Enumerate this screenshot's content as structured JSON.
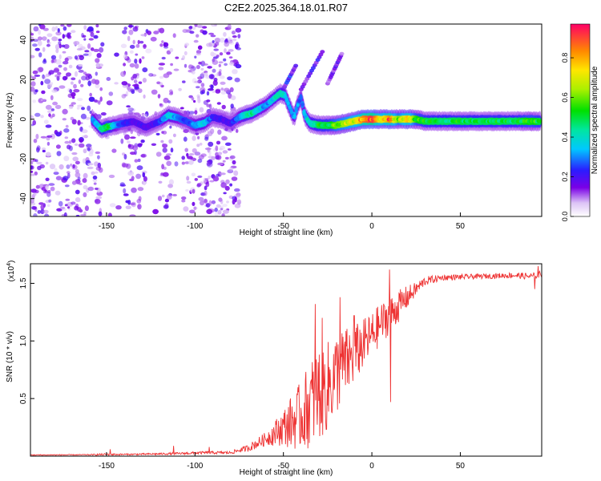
{
  "title": "C2E2.2025.364.18.01.R07",
  "chart_data": [
    {
      "type": "heatmap",
      "name": "spectrogram",
      "xlabel": "Height of straight line (km)",
      "ylabel": "Frequency (Hz)",
      "xlim": [
        -193,
        96
      ],
      "ylim": [
        -49,
        48
      ],
      "xticks": [
        -150,
        -100,
        -50,
        0,
        50
      ],
      "yticks": [
        40,
        20,
        0,
        -20,
        -40
      ],
      "grid": false,
      "colorbar": {
        "label": "Normalized spectral amplitude",
        "range": [
          0,
          0.97
        ],
        "ticks": [
          "0.0",
          "0.2",
          "0.4",
          "0.6",
          "0.8"
        ],
        "tick_values": [
          0,
          0.2,
          0.4,
          0.6,
          0.8
        ]
      },
      "noise_region": {
        "x_range": [
          -193,
          -75
        ],
        "y_range": [
          -49,
          48
        ],
        "typical_amplitude": 0.12
      },
      "gaps": [
        [
          -153,
          -141
        ],
        [
          -128,
          -121
        ],
        [
          -113,
          -107
        ]
      ],
      "ridge": [
        {
          "x": -158,
          "y": 0,
          "a": 0.3
        },
        {
          "x": -153,
          "y": -5,
          "a": 0.42
        },
        {
          "x": -150,
          "y": -4,
          "a": 0.55
        },
        {
          "x": -145,
          "y": -3,
          "a": 0.3
        },
        {
          "x": -135,
          "y": -1,
          "a": 0.18
        },
        {
          "x": -128,
          "y": -4,
          "a": 0.2
        },
        {
          "x": -125,
          "y": -3,
          "a": 0.18
        },
        {
          "x": -120,
          "y": -1,
          "a": 0.25
        },
        {
          "x": -115,
          "y": 2,
          "a": 0.38
        },
        {
          "x": -110,
          "y": 1,
          "a": 0.3
        },
        {
          "x": -105,
          "y": -1,
          "a": 0.25
        },
        {
          "x": -100,
          "y": -3,
          "a": 0.3
        },
        {
          "x": -95,
          "y": -2,
          "a": 0.38
        },
        {
          "x": -90,
          "y": 1,
          "a": 0.22
        },
        {
          "x": -85,
          "y": 0,
          "a": 0.2
        },
        {
          "x": -80,
          "y": -2,
          "a": 0.2
        },
        {
          "x": -75,
          "y": 1,
          "a": 0.3
        },
        {
          "x": -72,
          "y": 2,
          "a": 0.42
        },
        {
          "x": -68,
          "y": 3,
          "a": 0.45
        },
        {
          "x": -64,
          "y": 5,
          "a": 0.35
        },
        {
          "x": -60,
          "y": 7,
          "a": 0.3
        },
        {
          "x": -56,
          "y": 10,
          "a": 0.38
        },
        {
          "x": -52,
          "y": 13,
          "a": 0.45
        },
        {
          "x": -49,
          "y": 12,
          "a": 0.35
        },
        {
          "x": -46,
          "y": 5,
          "a": 0.3
        },
        {
          "x": -44,
          "y": 1,
          "a": 0.35
        },
        {
          "x": -42,
          "y": 7,
          "a": 0.3
        },
        {
          "x": -40,
          "y": 11,
          "a": 0.28
        },
        {
          "x": -38,
          "y": 2,
          "a": 0.35
        },
        {
          "x": -35,
          "y": -2,
          "a": 0.4
        },
        {
          "x": -30,
          "y": -3,
          "a": 0.5
        },
        {
          "x": -25,
          "y": -3,
          "a": 0.5
        },
        {
          "x": -20,
          "y": -3,
          "a": 0.6
        },
        {
          "x": -15,
          "y": -2,
          "a": 0.65
        },
        {
          "x": -10,
          "y": -1,
          "a": 0.7
        },
        {
          "x": -5,
          "y": 0,
          "a": 0.85
        },
        {
          "x": 0,
          "y": 0,
          "a": 0.95
        },
        {
          "x": 5,
          "y": 0,
          "a": 0.7
        },
        {
          "x": 10,
          "y": 0,
          "a": 0.85
        },
        {
          "x": 15,
          "y": 0,
          "a": 0.6
        },
        {
          "x": 20,
          "y": 0,
          "a": 0.8
        },
        {
          "x": 25,
          "y": 0,
          "a": 0.55
        },
        {
          "x": 30,
          "y": -1,
          "a": 0.5
        },
        {
          "x": 40,
          "y": -1,
          "a": 0.48
        },
        {
          "x": 50,
          "y": -1,
          "a": 0.5
        },
        {
          "x": 60,
          "y": -1,
          "a": 0.48
        },
        {
          "x": 70,
          "y": -1,
          "a": 0.5
        },
        {
          "x": 80,
          "y": -1,
          "a": 0.48
        },
        {
          "x": 90,
          "y": -1,
          "a": 0.55
        },
        {
          "x": 95,
          "y": -1,
          "a": 0.5
        }
      ],
      "streaks": [
        {
          "x0": -52,
          "y0": 12,
          "x1": -43,
          "y1": 27,
          "a": 0.2
        },
        {
          "x0": -40,
          "y0": 15,
          "x1": -28,
          "y1": 34,
          "a": 0.18
        },
        {
          "x0": -25,
          "y0": 18,
          "x1": -17,
          "y1": 33,
          "a": 0.15
        }
      ]
    },
    {
      "type": "line",
      "name": "snr",
      "xlabel": "Height of straight line (km)",
      "ylabel": "SNR (10 * v/v)",
      "y_multiplier": "(x10^4)",
      "multiplier_base": "(x10",
      "multiplier_exp": "4",
      "multiplier_close": ")",
      "xlim": [
        -193,
        96
      ],
      "ylim": [
        0,
        1.67
      ],
      "xticks": [
        -150,
        -100,
        -50,
        0,
        50
      ],
      "yticks": [
        0.5,
        1.0,
        1.5
      ],
      "ytick_labels": [
        "0.5",
        "1.0",
        "1.5"
      ],
      "grid": false,
      "color": "#ee3333",
      "series": [
        {
          "name": "SNR",
          "envelope": [
            {
              "x": -193,
              "base": 0.01,
              "amp": 0.004
            },
            {
              "x": -160,
              "base": 0.012,
              "amp": 0.004
            },
            {
              "x": -150,
              "base": 0.015,
              "amp": 0.01
            },
            {
              "x": -140,
              "base": 0.015,
              "amp": 0.006
            },
            {
              "x": -125,
              "base": 0.018,
              "amp": 0.008
            },
            {
              "x": -110,
              "base": 0.022,
              "amp": 0.01
            },
            {
              "x": -95,
              "base": 0.03,
              "amp": 0.012
            },
            {
              "x": -80,
              "base": 0.03,
              "amp": 0.012
            },
            {
              "x": -70,
              "base": 0.07,
              "amp": 0.03
            },
            {
              "x": -60,
              "base": 0.15,
              "amp": 0.06
            },
            {
              "x": -50,
              "base": 0.25,
              "amp": 0.16
            },
            {
              "x": -45,
              "base": 0.3,
              "amp": 0.24
            },
            {
              "x": -40,
              "base": 0.35,
              "amp": 0.3
            },
            {
              "x": -35,
              "base": 0.45,
              "amp": 0.38
            },
            {
              "x": -30,
              "base": 0.55,
              "amp": 0.42
            },
            {
              "x": -25,
              "base": 0.6,
              "amp": 0.4
            },
            {
              "x": -20,
              "base": 0.72,
              "amp": 0.36
            },
            {
              "x": -15,
              "base": 0.8,
              "amp": 0.32
            },
            {
              "x": -10,
              "base": 0.88,
              "amp": 0.26
            },
            {
              "x": -5,
              "base": 0.97,
              "amp": 0.22
            },
            {
              "x": 0,
              "base": 1.05,
              "amp": 0.2
            },
            {
              "x": 5,
              "base": 1.15,
              "amp": 0.18
            },
            {
              "x": 10,
              "base": 1.22,
              "amp": 0.16
            },
            {
              "x": 15,
              "base": 1.3,
              "amp": 0.14
            },
            {
              "x": 20,
              "base": 1.38,
              "amp": 0.1
            },
            {
              "x": 25,
              "base": 1.45,
              "amp": 0.06
            },
            {
              "x": 30,
              "base": 1.52,
              "amp": 0.04
            },
            {
              "x": 40,
              "base": 1.55,
              "amp": 0.025
            },
            {
              "x": 60,
              "base": 1.56,
              "amp": 0.022
            },
            {
              "x": 80,
              "base": 1.57,
              "amp": 0.025
            },
            {
              "x": 90,
              "base": 1.56,
              "amp": 0.03
            },
            {
              "x": 96,
              "base": 1.58,
              "amp": 0.03
            }
          ],
          "spikes": [
            {
              "x": -148,
              "y": 0.06
            },
            {
              "x": -112,
              "y": 0.09
            },
            {
              "x": -92,
              "y": 0.08
            },
            {
              "x": -32,
              "y": 1.32
            },
            {
              "x": -28,
              "y": 1.2
            },
            {
              "x": -18,
              "y": 1.38
            },
            {
              "x": -10,
              "y": 1.22
            },
            {
              "x": 10,
              "y": 1.62
            },
            {
              "x": 10.5,
              "y": 0.47
            },
            {
              "x": 92,
              "y": 1.45
            },
            {
              "x": 94,
              "y": 1.65
            }
          ]
        }
      ]
    }
  ]
}
